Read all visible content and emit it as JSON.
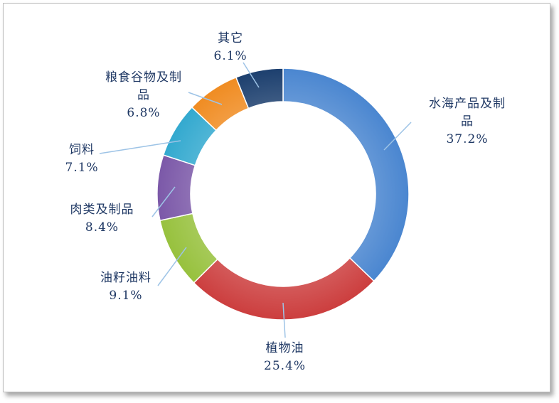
{
  "chart_data": {
    "type": "pie",
    "variant": "donut",
    "title": "",
    "colors": {
      "label_text": "#1f3864",
      "leader_line": "#9dc3e6"
    },
    "slices": [
      {
        "name": "水海产品及制品",
        "name_lines": [
          "水海产品及制",
          "品"
        ],
        "value": 37.2,
        "label": "37.2%",
        "color": "#4a86d0"
      },
      {
        "name": "植物油",
        "name_lines": [
          "植物油"
        ],
        "value": 25.4,
        "label": "25.4%",
        "color": "#cc3e3e"
      },
      {
        "name": "油籽油料",
        "name_lines": [
          "油籽油料"
        ],
        "value": 9.1,
        "label": "9.1%",
        "color": "#97c13d"
      },
      {
        "name": "肉类及制品",
        "name_lines": [
          "肉类及制品"
        ],
        "value": 8.4,
        "label": "8.4%",
        "color": "#7b58a8"
      },
      {
        "name": "饲料",
        "name_lines": [
          "饲料"
        ],
        "value": 7.1,
        "label": "7.1%",
        "color": "#33a9cf"
      },
      {
        "name": "粮食谷物及制品",
        "name_lines": [
          "粮食谷物及制",
          "品"
        ],
        "value": 6.8,
        "label": "6.8%",
        "color": "#f08c22"
      },
      {
        "name": "其它",
        "name_lines": [
          "其它"
        ],
        "value": 6.1,
        "label": "6.1%",
        "color": "#1c3f6e"
      }
    ]
  }
}
